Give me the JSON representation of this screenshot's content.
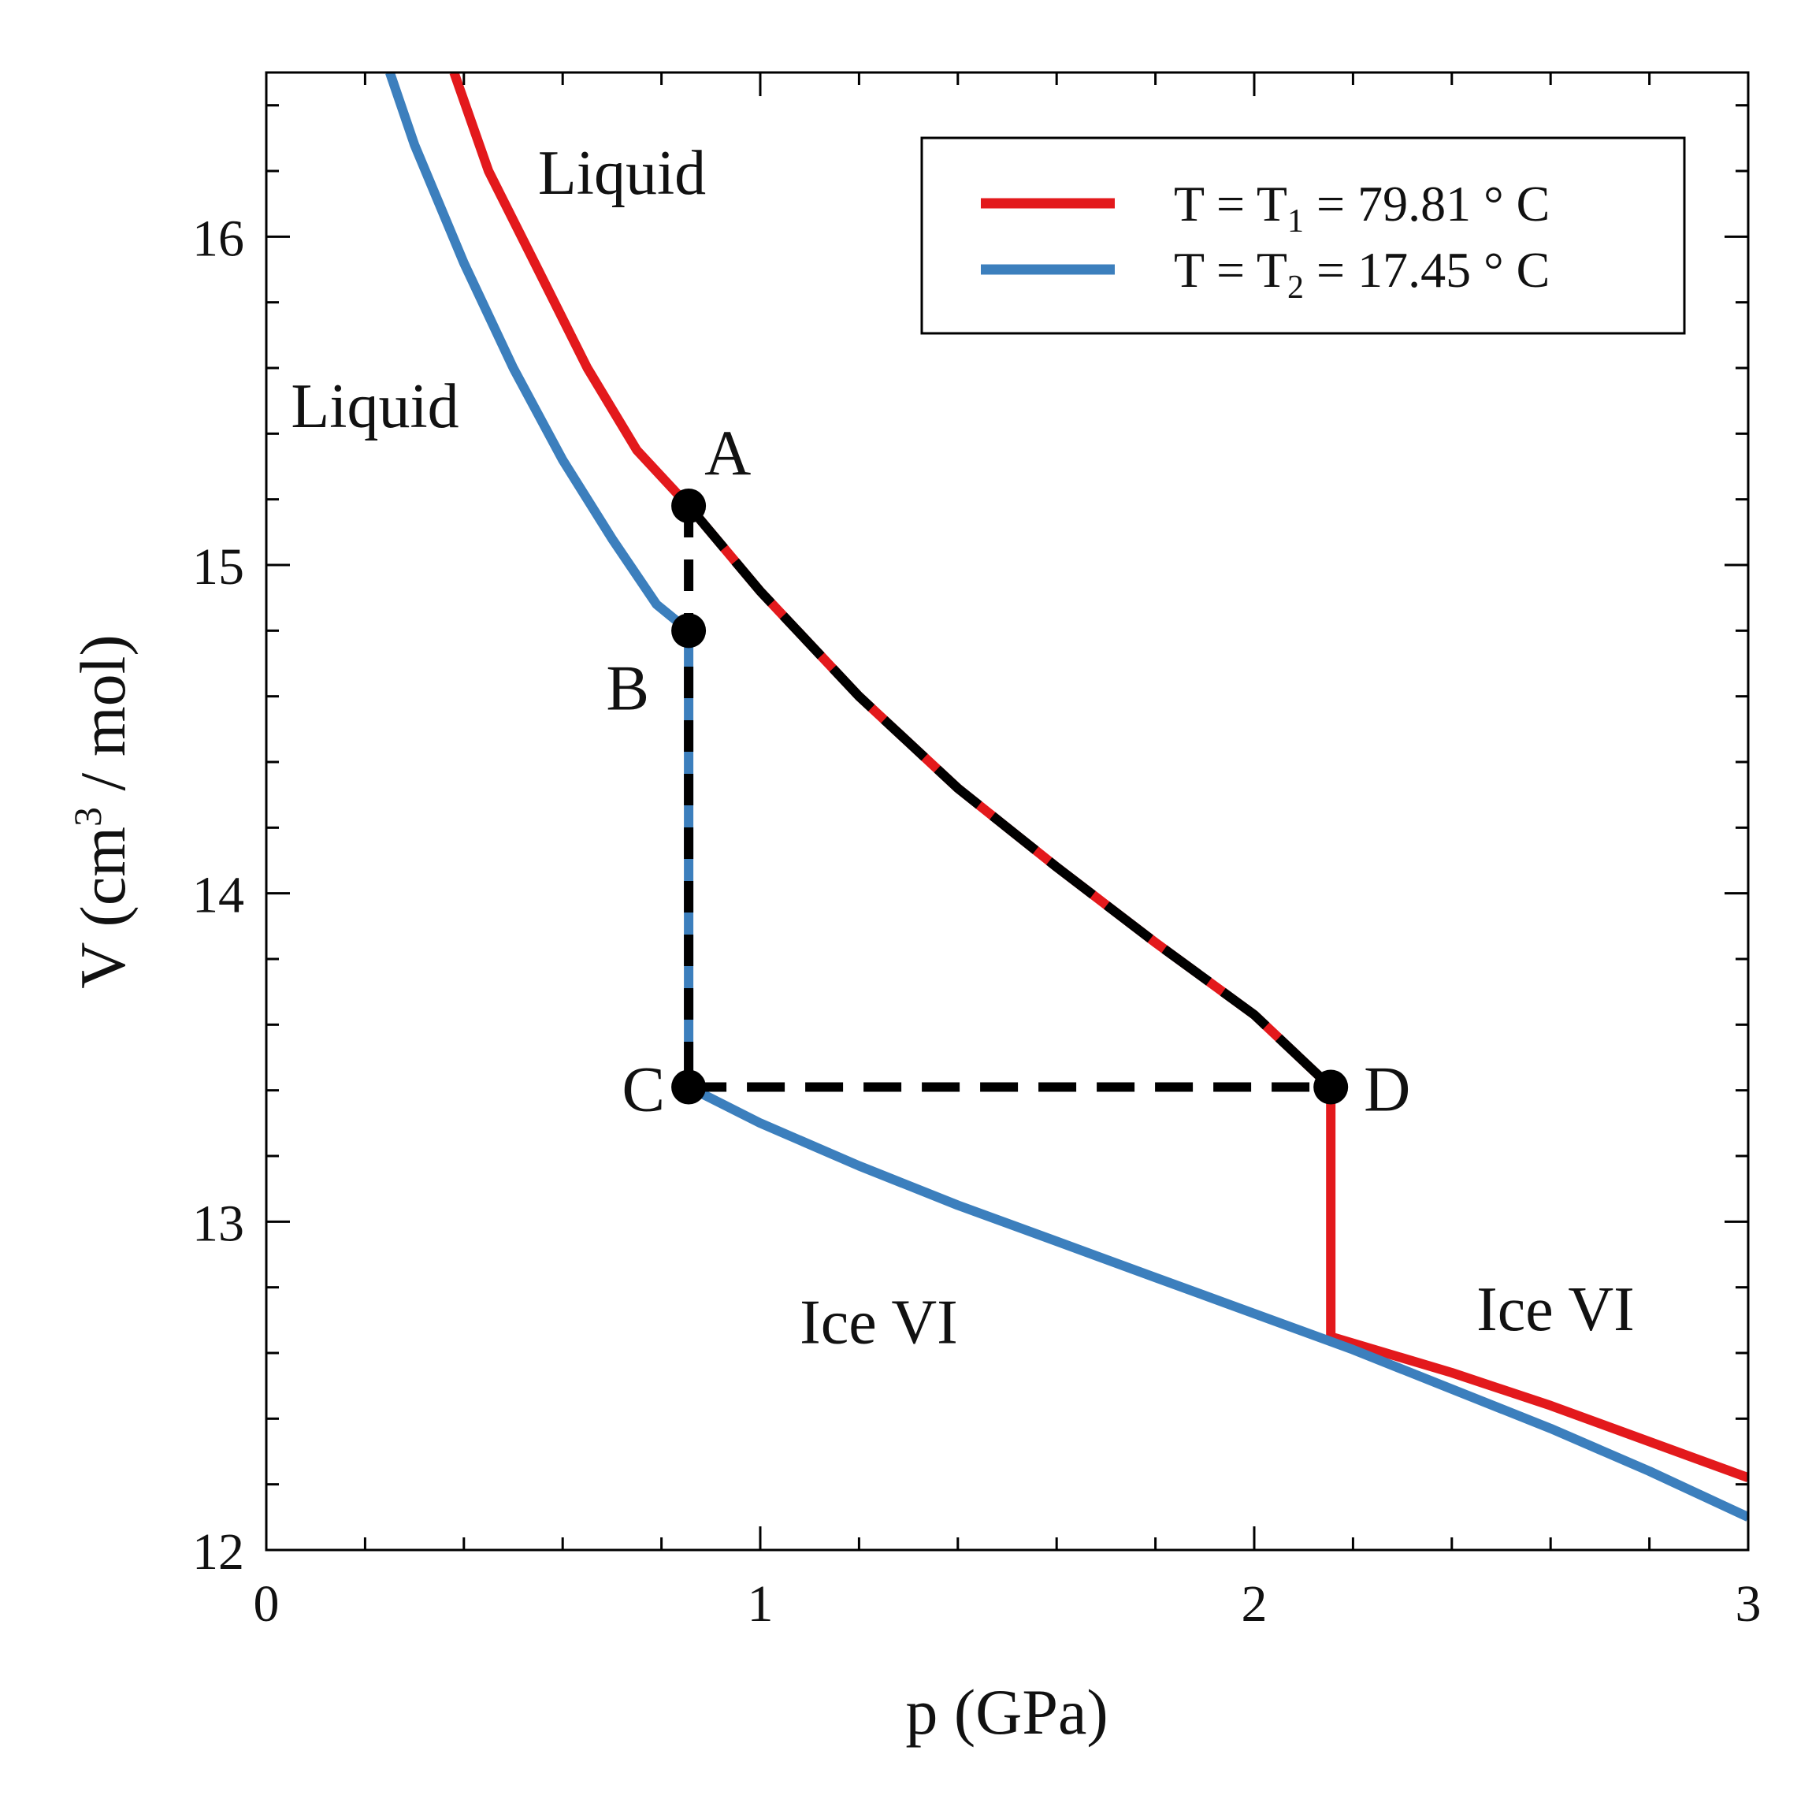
{
  "chart_data": {
    "type": "line",
    "xlabel": "p (GPa)",
    "ylabel": {
      "prefix": "V (cm",
      "sup": "3",
      "suffix": " / mol)"
    },
    "xlim": [
      0,
      3
    ],
    "ylim": [
      12,
      16.5
    ],
    "x_ticks": [
      0,
      1,
      2,
      3
    ],
    "x_tick_labels": [
      "0",
      "1",
      "2",
      "3"
    ],
    "x_minor_step": 0.2,
    "y_ticks": [
      12,
      13,
      14,
      15,
      16
    ],
    "y_tick_labels": [
      "12",
      "13",
      "14",
      "15",
      "16"
    ],
    "y_minor_step": 0.2,
    "grid": false,
    "legend_position": "top-right",
    "series": [
      {
        "name": "T = T1 = 79.81 ° C",
        "legend": {
          "pre": "T = T",
          "sub": "1",
          "post": " = 79.81 ° C"
        },
        "color": "#e3191c",
        "segments": [
          [
            [
              0.38,
              16.5
            ],
            [
              0.45,
              16.2
            ],
            [
              0.55,
              15.9
            ],
            [
              0.65,
              15.6
            ],
            [
              0.75,
              15.35
            ],
            [
              0.855,
              15.18
            ],
            [
              1.0,
              14.92
            ],
            [
              1.2,
              14.6
            ],
            [
              1.4,
              14.32
            ],
            [
              1.6,
              14.08
            ],
            [
              1.8,
              13.85
            ],
            [
              2.0,
              13.63
            ],
            [
              2.155,
              13.41
            ]
          ],
          [
            [
              2.155,
              13.41
            ],
            [
              2.155,
              12.65
            ]
          ],
          [
            [
              2.155,
              12.65
            ],
            [
              2.4,
              12.54
            ],
            [
              2.6,
              12.44
            ],
            [
              2.8,
              12.33
            ],
            [
              3.0,
              12.22
            ]
          ]
        ]
      },
      {
        "name": "T = T2 = 17.45 ° C",
        "legend": {
          "pre": "T = T",
          "sub": "2",
          "post": " = 17.45 ° C"
        },
        "color": "#3c7fbd",
        "segments": [
          [
            [
              0.25,
              16.5
            ],
            [
              0.3,
              16.28
            ],
            [
              0.4,
              15.92
            ],
            [
              0.5,
              15.6
            ],
            [
              0.6,
              15.32
            ],
            [
              0.7,
              15.08
            ],
            [
              0.79,
              14.88
            ],
            [
              0.855,
              14.8
            ]
          ],
          [
            [
              0.855,
              14.8
            ],
            [
              0.855,
              13.41
            ]
          ],
          [
            [
              0.855,
              13.41
            ],
            [
              1.0,
              13.3
            ],
            [
              1.2,
              13.17
            ],
            [
              1.4,
              13.05
            ],
            [
              1.6,
              12.94
            ],
            [
              1.8,
              12.83
            ],
            [
              2.0,
              12.72
            ],
            [
              2.2,
              12.61
            ],
            [
              2.4,
              12.49
            ],
            [
              2.6,
              12.37
            ],
            [
              2.8,
              12.24
            ],
            [
              3.0,
              12.1
            ]
          ]
        ]
      }
    ],
    "cycle": {
      "color": "#000000",
      "path_A_to_D": [
        [
          0.855,
          15.18
        ],
        [
          1.0,
          14.92
        ],
        [
          1.2,
          14.6
        ],
        [
          1.4,
          14.32
        ],
        [
          1.6,
          14.08
        ],
        [
          1.8,
          13.85
        ],
        [
          2.0,
          13.63
        ],
        [
          2.155,
          13.41
        ]
      ],
      "dashed_A_to_C": [
        [
          0.855,
          15.18
        ],
        [
          0.855,
          13.41
        ]
      ],
      "dashed_C_to_D": [
        [
          0.855,
          13.41
        ],
        [
          2.155,
          13.41
        ]
      ]
    },
    "points": [
      {
        "label": "A",
        "x": 0.855,
        "y": 15.18,
        "label_side": "upper-right"
      },
      {
        "label": "B",
        "x": 0.855,
        "y": 14.8,
        "label_side": "lower-left"
      },
      {
        "label": "C",
        "x": 0.855,
        "y": 13.41,
        "label_side": "left"
      },
      {
        "label": "D",
        "x": 2.155,
        "y": 13.41,
        "label_side": "right"
      }
    ],
    "annotations": [
      {
        "text": "Liquid",
        "x": 0.55,
        "y": 16.13
      },
      {
        "text": "Liquid",
        "x": 0.05,
        "y": 15.42
      },
      {
        "text": "Ice VI",
        "x": 1.08,
        "y": 12.63
      },
      {
        "text": "Ice VI",
        "x": 2.45,
        "y": 12.67
      }
    ]
  }
}
